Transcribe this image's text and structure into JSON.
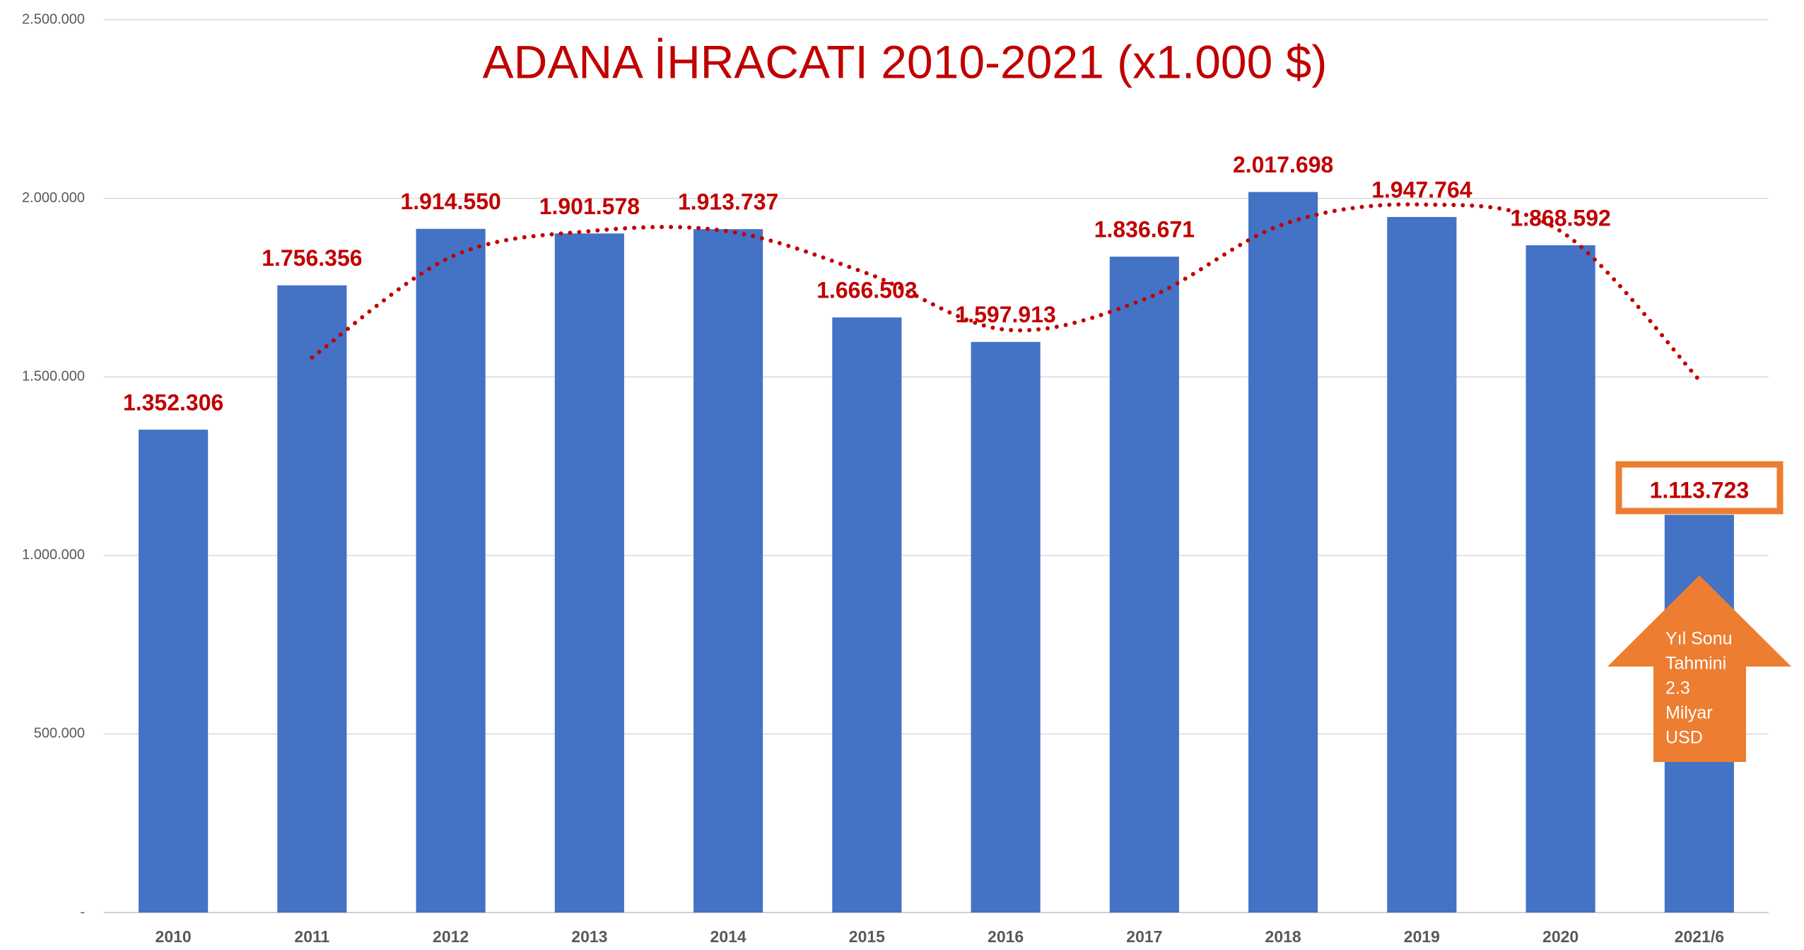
{
  "chart_data": {
    "type": "bar",
    "title": "ADANA İHRACATI 2010-2021 (x1.000 $)",
    "categories": [
      "2010",
      "2011",
      "2012",
      "2013",
      "2014",
      "2015",
      "2016",
      "2017",
      "2018",
      "2019",
      "2020",
      "2021/6"
    ],
    "values": [
      1352306,
      1756356,
      1914550,
      1901578,
      1913737,
      1666503,
      1597913,
      1836671,
      2017698,
      1947764,
      1868592,
      1113723
    ],
    "value_labels": [
      "1.352.306",
      "1.756.356",
      "1.914.550",
      "1.901.578",
      "1.913.737",
      "1.666.503",
      "1.597.913",
      "1.836.671",
      "2.017.698",
      "1.947.764",
      "1.868.592",
      "1.113.723"
    ],
    "color": "#4472c4",
    "label_color": "#c00000",
    "trend_color": "#c00000",
    "ylim": [
      0,
      2500000
    ],
    "yticks": [
      {
        "value": 0,
        "label": "-"
      },
      {
        "value": 500000,
        "label": "500.000"
      },
      {
        "value": 1000000,
        "label": "1.000.000"
      },
      {
        "value": 1500000,
        "label": "1.500.000"
      },
      {
        "value": 2000000,
        "label": "2.000.000"
      },
      {
        "value": 2500000,
        "label": "2.500.000"
      }
    ],
    "grid": true,
    "annotation": [
      "Yıl Sonu",
      "Tahmini",
      "2.3",
      "Milyar",
      "USD"
    ]
  }
}
